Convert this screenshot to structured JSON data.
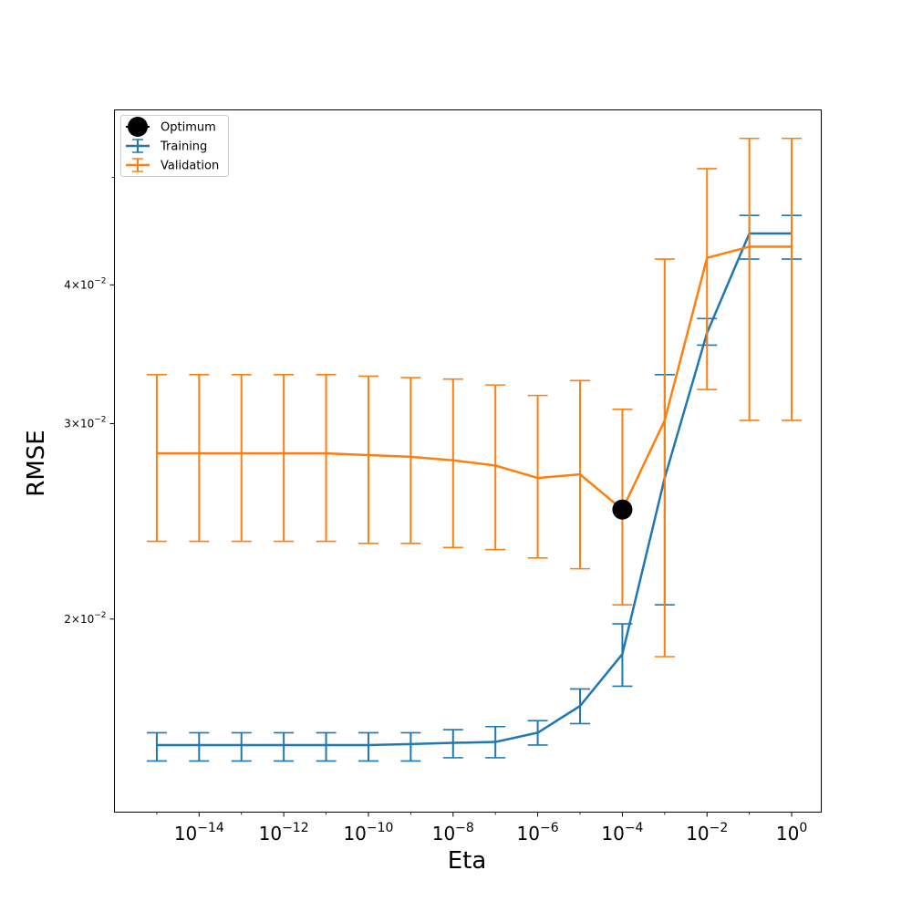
{
  "chart_data": {
    "type": "line",
    "xlabel": "Eta",
    "ylabel": "RMSE",
    "x_scale": "log",
    "y_scale": "log",
    "xlim": [
      1e-16,
      5
    ],
    "ylim": [
      0.0134,
      0.0575
    ],
    "grid": false,
    "legend_position": "top-left",
    "x": [
      1e-15,
      1e-14,
      1e-13,
      1e-12,
      1e-11,
      1e-10,
      1e-09,
      1e-08,
      1e-07,
      1e-06,
      1e-05,
      0.0001,
      0.001,
      0.01,
      0.1,
      1
    ],
    "x_tick_values": [
      1e-14,
      1e-12,
      1e-10,
      1e-08,
      1e-06,
      0.0001,
      0.01,
      1
    ],
    "x_tick_labels": [
      {
        "base": "10",
        "exp": "−14"
      },
      {
        "base": "10",
        "exp": "−12"
      },
      {
        "base": "10",
        "exp": "−10"
      },
      {
        "base": "10",
        "exp": "−8"
      },
      {
        "base": "10",
        "exp": "−6"
      },
      {
        "base": "10",
        "exp": "−4"
      },
      {
        "base": "10",
        "exp": "−2"
      },
      {
        "base": "10",
        "exp": "0"
      }
    ],
    "y_tick_values": [
      0.02,
      0.03,
      0.04
    ],
    "y_tick_labels": [
      {
        "mant": "2×10",
        "exp": "−2"
      },
      {
        "mant": "3×10",
        "exp": "−2"
      },
      {
        "mant": "4×10",
        "exp": "−2"
      }
    ],
    "y_minor_ticks": [
      0.05
    ],
    "series": [
      {
        "name": "Training",
        "color": "#1f77b4",
        "values": [
          0.0154,
          0.0154,
          0.0154,
          0.0154,
          0.0154,
          0.0154,
          0.01543,
          0.01547,
          0.0155,
          0.0158,
          0.0167,
          0.0186,
          0.0268,
          0.0362,
          0.0445,
          0.0445
        ],
        "err_lower": [
          0.0149,
          0.0149,
          0.0149,
          0.0149,
          0.0149,
          0.0149,
          0.0149,
          0.015,
          0.015,
          0.0154,
          0.0161,
          0.0174,
          0.0206,
          0.0353,
          0.0422,
          0.0422
        ],
        "err_upper": [
          0.0158,
          0.0158,
          0.0158,
          0.0158,
          0.0158,
          0.0158,
          0.0158,
          0.0159,
          0.016,
          0.0162,
          0.0173,
          0.0198,
          0.0332,
          0.0373,
          0.0462,
          0.0462
        ]
      },
      {
        "name": "Validation",
        "color": "#ff7f0e",
        "values": [
          0.0282,
          0.0282,
          0.0282,
          0.0282,
          0.0282,
          0.0281,
          0.028,
          0.0278,
          0.0275,
          0.0268,
          0.027,
          0.0251,
          0.0302,
          0.0423,
          0.0433,
          0.0433
        ],
        "err_lower": [
          0.0235,
          0.0235,
          0.0235,
          0.0235,
          0.0235,
          0.0234,
          0.0234,
          0.0232,
          0.0231,
          0.0227,
          0.0222,
          0.0206,
          0.0185,
          0.0322,
          0.0302,
          0.0302
        ],
        "err_upper": [
          0.0332,
          0.0332,
          0.0332,
          0.0332,
          0.0332,
          0.0331,
          0.033,
          0.0329,
          0.0325,
          0.0318,
          0.0328,
          0.0309,
          0.0422,
          0.0509,
          0.0542,
          0.0542
        ]
      }
    ],
    "optimum": {
      "name": "Optimum",
      "x": 0.0001,
      "y": 0.0251,
      "color": "#000000"
    }
  }
}
